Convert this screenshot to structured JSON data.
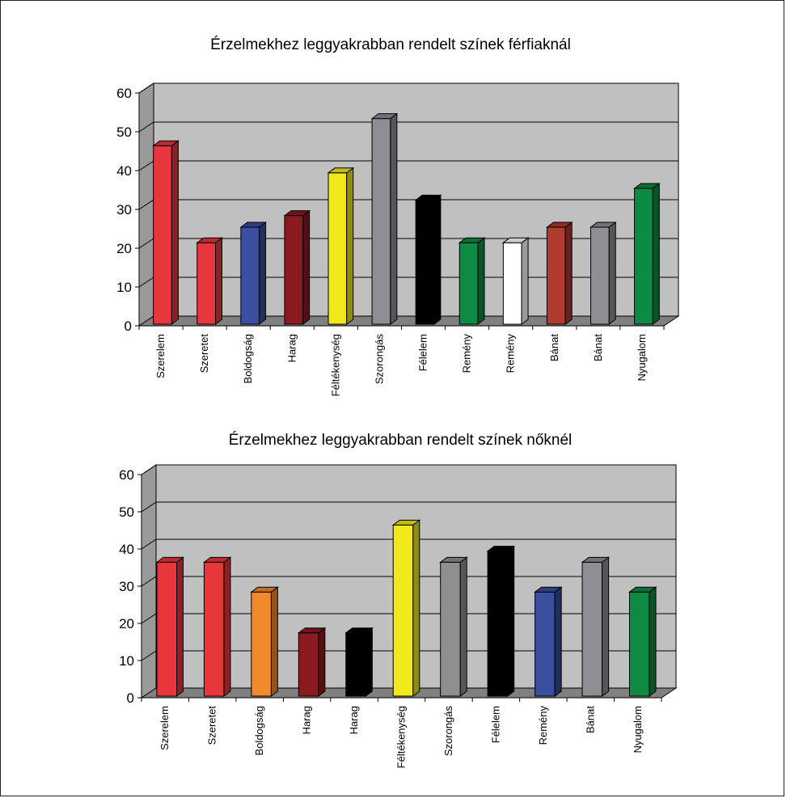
{
  "chart_data": [
    {
      "type": "bar",
      "title": "Érzelmekhez leggyakrabban rendelt színek férfiaknál",
      "ylim": [
        0,
        60
      ],
      "yticks": [
        0,
        10,
        20,
        30,
        40,
        50,
        60
      ],
      "grid": true,
      "legend": "none",
      "categories": [
        "Szerelem",
        "Szeretet",
        "Boldogság",
        "Harag",
        "Féltékenység",
        "Szorongás",
        "Félelem",
        "Remény",
        "Remény",
        "Bánat",
        "Bánat",
        "Nyugalom"
      ],
      "values": [
        46,
        21,
        25,
        28,
        39,
        53,
        32,
        21,
        21,
        25,
        25,
        35
      ],
      "colors": [
        "#e8373c",
        "#e8373c",
        "#3a4fa0",
        "#8b1a1f",
        "#f0ea1c",
        "#8e8f93",
        "#000000",
        "#0f8a45",
        "#ffffff",
        "#b03a2e",
        "#8e8f93",
        "#0f8a45"
      ]
    },
    {
      "type": "bar",
      "title": "Érzelmekhez leggyakrabban rendelt színek nőknél",
      "ylim": [
        0,
        60
      ],
      "yticks": [
        0,
        10,
        20,
        30,
        40,
        50,
        60
      ],
      "grid": true,
      "legend": "none",
      "categories": [
        "Szerelem",
        "Szeretet",
        "Boldogság",
        "Harag",
        "Harag",
        "Féltékenység",
        "Szorongás",
        "Félelem",
        "Remény",
        "Bánat",
        "Nyugalom"
      ],
      "values": [
        36,
        36,
        28,
        17,
        17,
        46,
        36,
        39,
        28,
        36,
        28
      ],
      "colors": [
        "#e8373c",
        "#e8373c",
        "#f08a2a",
        "#8b1a1f",
        "#000000",
        "#f0ea1c",
        "#8e8f93",
        "#000000",
        "#3a4fa0",
        "#8e8f93",
        "#0f8a45"
      ]
    }
  ]
}
